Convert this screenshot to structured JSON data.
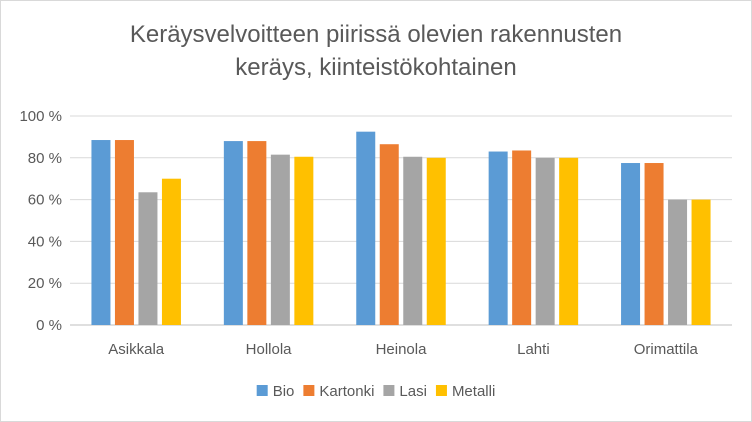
{
  "chart_data": {
    "type": "bar",
    "title_lines": [
      "Keräysvelvoitteen piirissä olevien rakennusten",
      "keräys, kiinteistökohtainen"
    ],
    "categories": [
      "Asikkala",
      "Hollola",
      "Heinola",
      "Lahti",
      "Orimattila"
    ],
    "series": [
      {
        "name": "Bio",
        "color": "#5b9bd5",
        "values": [
          88.5,
          88,
          92.5,
          83,
          77.5
        ]
      },
      {
        "name": "Kartonki",
        "color": "#ed7d31",
        "values": [
          88.5,
          88,
          86.5,
          83.5,
          77.5
        ]
      },
      {
        "name": "Lasi",
        "color": "#a5a5a5",
        "values": [
          63.5,
          81.5,
          80.5,
          80,
          60
        ]
      },
      {
        "name": "Metalli",
        "color": "#ffc000",
        "values": [
          70,
          80.5,
          80,
          80,
          60
        ]
      }
    ],
    "yticks": [
      "0 %",
      "20 %",
      "40 %",
      "60 %",
      "80 %",
      "100 %"
    ],
    "ylim": [
      0,
      100
    ],
    "grid": true,
    "legend_position": "bottom"
  }
}
